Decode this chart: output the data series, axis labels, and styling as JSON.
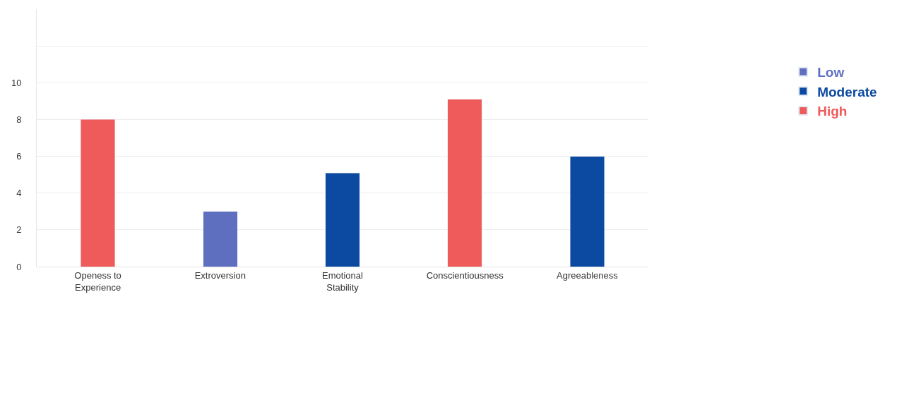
{
  "chart_data": {
    "type": "bar",
    "stacked": true,
    "categories": [
      "Openess to Experience",
      "Extroversion",
      "Emotional Stability",
      "Conscientiousness",
      "Agreeableness"
    ],
    "series": [
      {
        "name": "Low",
        "color": "#5f6fbf",
        "values": [
          null,
          3,
          null,
          null,
          null
        ]
      },
      {
        "name": "Moderate",
        "color": "#0b4aa0",
        "values": [
          null,
          null,
          5.1,
          null,
          6
        ]
      },
      {
        "name": "High",
        "color": "#ef5a5a",
        "values": [
          8,
          null,
          null,
          9.1,
          null
        ]
      }
    ],
    "ylim": [
      0,
      14
    ],
    "yticks": [
      0,
      2,
      4,
      6,
      8,
      10,
      {
        "value": 12,
        "label": null
      }
    ],
    "grid": "y",
    "legend": "right"
  }
}
